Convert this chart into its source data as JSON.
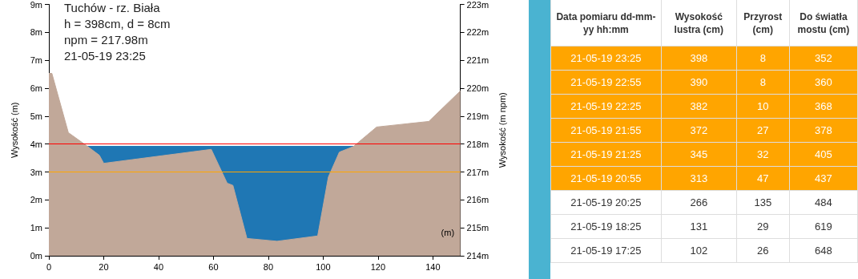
{
  "chart_data": [
    {
      "type": "area",
      "title": "Tuchów - rz. Biała",
      "annotations": [
        "h = 398cm, d = 8cm",
        "npm = 217.98m",
        "21-05-19 23:25"
      ],
      "xlabel": "(m)",
      "ylabel": "Wysokość (m)",
      "y2label": "Wysokość (m npm)",
      "series": [
        {
          "color": "#1f77b4",
          "x": [
            13.2,
            111
          ],
          "values": [
            3.92,
            3.92
          ]
        },
        {
          "color": "#c1a899",
          "x": [
            0,
            1.1,
            7.1,
            13.2,
            18.4,
            20,
            59.2,
            65,
            67.1,
            72.2,
            83.2,
            98,
            101.9,
            105.9,
            111,
            119.5,
            138.5,
            150
          ],
          "values": [
            6.53,
            6.53,
            4.41,
            3.98,
            3.6,
            3.31,
            3.81,
            2.6,
            2.52,
            0.62,
            0.52,
            0.71,
            2.82,
            3.71,
            3.91,
            4.61,
            4.81,
            5.9
          ]
        }
      ],
      "xlim": [
        0,
        150
      ],
      "xticks": [
        0,
        20,
        40,
        60,
        80,
        100,
        120,
        140
      ],
      "ylim": [
        0,
        9
      ],
      "yticks": [
        {
          "value": 0,
          "label": "0m"
        },
        {
          "value": 1,
          "label": "1m"
        },
        {
          "value": 2,
          "label": "2m"
        },
        {
          "value": 3,
          "label": "3m"
        },
        {
          "value": 4,
          "label": "4m"
        },
        {
          "value": 5,
          "label": "5m"
        },
        {
          "value": 6,
          "label": "6m"
        },
        {
          "value": 7,
          "label": "7m"
        },
        {
          "value": 8,
          "label": "8m"
        },
        {
          "value": 9,
          "label": "9m"
        }
      ],
      "y2lim": [
        214,
        223
      ],
      "y2ticks": [
        {
          "value": 214,
          "label": "214m"
        },
        {
          "value": 215,
          "label": "215m"
        },
        {
          "value": 216,
          "label": "216m"
        },
        {
          "value": 217,
          "label": "217m"
        },
        {
          "value": 218,
          "label": "218m"
        },
        {
          "value": 219,
          "label": "219m"
        },
        {
          "value": 220,
          "label": "220m"
        },
        {
          "value": 221,
          "label": "221m"
        },
        {
          "value": 222,
          "label": "222m"
        },
        {
          "value": 223,
          "label": "223m"
        }
      ],
      "ref_lines": [
        {
          "axis": "y",
          "value": 4,
          "color": "#ff0000"
        },
        {
          "axis": "y",
          "value": 3,
          "color": "#ffa500"
        }
      ],
      "grid": false
    },
    {
      "type": "other",
      "legend_title": "Data pomiaru dd-mm-yy hh:mm",
      "categories": [
        "Wysokość lustra (cm)",
        "Przyrost (cm)",
        "Do światła mostu (cm)"
      ],
      "data_labels": true,
      "series": [
        {
          "name": "21-05-19 23:25",
          "color": "#ffa500",
          "values": [
            398,
            8,
            352
          ]
        },
        {
          "name": "21-05-19 22:55",
          "color": "#ffa500",
          "values": [
            390,
            8,
            360
          ]
        },
        {
          "name": "21-05-19 22:25",
          "color": "#ffa500",
          "values": [
            382,
            10,
            368
          ]
        },
        {
          "name": "21-05-19 21:55",
          "color": "#ffa500",
          "values": [
            372,
            27,
            378
          ]
        },
        {
          "name": "21-05-19 21:25",
          "color": "#ffa500",
          "values": [
            345,
            32,
            405
          ]
        },
        {
          "name": "21-05-19 20:55",
          "color": "#ffa500",
          "values": [
            313,
            47,
            437
          ]
        },
        {
          "name": "21-05-19 20:25",
          "color": "#ffffff",
          "values": [
            266,
            135,
            484
          ]
        },
        {
          "name": "21-05-19 18:25",
          "color": "#ffffff",
          "values": [
            131,
            29,
            619
          ]
        },
        {
          "name": "21-05-19 17:25",
          "color": "#ffffff",
          "values": [
            102,
            26,
            648
          ]
        }
      ]
    }
  ]
}
